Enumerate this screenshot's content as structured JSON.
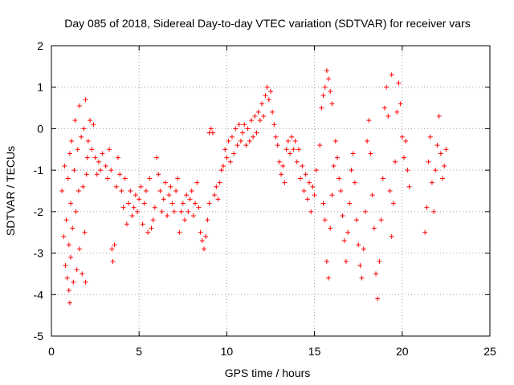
{
  "chart_data": {
    "type": "scatter",
    "title": "Day 085 of 2018, Sidereal Day-to-day VTEC variation (SDTVAR) for receiver vars",
    "xlabel": "GPS time / hours",
    "ylabel": "SDTVAR / TECUs",
    "xlim": [
      0,
      25
    ],
    "ylim": [
      -5,
      2
    ],
    "xticks": [
      0,
      5,
      10,
      15,
      20,
      25
    ],
    "xtick_labels": [
      "0",
      "5",
      "10",
      "15",
      "20",
      "25"
    ],
    "yticks": [
      -5,
      -4,
      -3,
      -2,
      -1,
      0,
      1,
      2
    ],
    "ytick_labels": [
      "-5",
      "-4",
      "-3",
      "-2",
      "-1",
      "0",
      "1",
      "2"
    ],
    "grid": true,
    "marker": "+",
    "color": "#ff0000",
    "series": [
      {
        "name": "SDTVAR",
        "points": [
          [
            0.6,
            -1.5
          ],
          [
            0.7,
            -2.6
          ],
          [
            0.75,
            -0.9
          ],
          [
            0.8,
            -3.3
          ],
          [
            0.85,
            -2.2
          ],
          [
            0.9,
            -3.6
          ],
          [
            0.95,
            -1.2
          ],
          [
            1.0,
            -3.9
          ],
          [
            1.0,
            -2.8
          ],
          [
            1.05,
            -4.2
          ],
          [
            1.05,
            -0.6
          ],
          [
            1.1,
            -3.1
          ],
          [
            1.1,
            -1.8
          ],
          [
            1.15,
            -0.3
          ],
          [
            1.2,
            -2.4
          ],
          [
            1.25,
            -3.7
          ],
          [
            1.3,
            -1.0
          ],
          [
            1.35,
            0.2
          ],
          [
            1.4,
            -2.0
          ],
          [
            1.45,
            -3.4
          ],
          [
            1.5,
            -0.5
          ],
          [
            1.55,
            -1.5
          ],
          [
            1.6,
            -2.9
          ],
          [
            1.7,
            -0.2
          ],
          [
            1.75,
            -3.5
          ],
          [
            1.8,
            -1.4
          ],
          [
            1.85,
            0.0
          ],
          [
            1.9,
            -2.5
          ],
          [
            1.95,
            -3.7
          ],
          [
            2.0,
            -1.1
          ],
          [
            2.05,
            -0.7
          ],
          [
            2.1,
            -0.3
          ],
          [
            2.2,
            0.2
          ],
          [
            2.3,
            -0.5
          ],
          [
            2.4,
            0.1
          ],
          [
            2.5,
            -0.7
          ],
          [
            2.6,
            -1.1
          ],
          [
            2.7,
            -0.8
          ],
          [
            2.8,
            -1.0
          ],
          [
            2.9,
            -0.6
          ],
          [
            1.6,
            0.55
          ],
          [
            1.95,
            0.7
          ],
          [
            3.1,
            -0.9
          ],
          [
            3.2,
            -1.2
          ],
          [
            3.3,
            -0.5
          ],
          [
            3.4,
            -1.0
          ],
          [
            3.45,
            -2.9
          ],
          [
            3.5,
            -3.2
          ],
          [
            3.6,
            -2.8
          ],
          [
            3.7,
            -1.4
          ],
          [
            3.8,
            -0.7
          ],
          [
            3.9,
            -1.1
          ],
          [
            4.0,
            -1.5
          ],
          [
            4.1,
            -1.9
          ],
          [
            4.2,
            -1.2
          ],
          [
            4.3,
            -2.3
          ],
          [
            4.4,
            -1.8
          ],
          [
            4.5,
            -1.5
          ],
          [
            4.6,
            -2.1
          ],
          [
            4.7,
            -1.9
          ],
          [
            4.8,
            -1.6
          ],
          [
            4.9,
            -2.0
          ],
          [
            5.0,
            -1.7
          ],
          [
            5.1,
            -1.4
          ],
          [
            5.2,
            -2.3
          ],
          [
            5.3,
            -1.8
          ],
          [
            5.4,
            -1.5
          ],
          [
            5.5,
            -2.5
          ],
          [
            5.6,
            -1.2
          ],
          [
            5.7,
            -2.4
          ],
          [
            5.8,
            -2.2
          ],
          [
            5.9,
            -1.9
          ],
          [
            6.0,
            -0.7
          ],
          [
            6.1,
            -1.1
          ],
          [
            6.2,
            -1.5
          ],
          [
            6.3,
            -2.0
          ],
          [
            6.4,
            -1.7
          ],
          [
            6.5,
            -1.3
          ],
          [
            6.6,
            -2.1
          ],
          [
            6.7,
            -1.6
          ],
          [
            6.8,
            -1.4
          ],
          [
            6.9,
            -1.8
          ],
          [
            7.0,
            -2.0
          ],
          [
            7.1,
            -1.5
          ],
          [
            7.2,
            -1.2
          ],
          [
            7.3,
            -2.5
          ],
          [
            7.4,
            -2.0
          ],
          [
            7.5,
            -1.8
          ],
          [
            7.6,
            -2.2
          ],
          [
            7.7,
            -1.6
          ],
          [
            7.8,
            -2.0
          ],
          [
            7.9,
            -1.7
          ],
          [
            8.0,
            -1.5
          ],
          [
            8.1,
            -2.1
          ],
          [
            8.2,
            -1.8
          ],
          [
            8.3,
            -1.3
          ],
          [
            8.4,
            -1.9
          ],
          [
            8.5,
            -2.5
          ],
          [
            8.6,
            -2.7
          ],
          [
            8.7,
            -2.9
          ],
          [
            8.8,
            -2.6
          ],
          [
            8.9,
            -2.2
          ],
          [
            9.0,
            -1.8
          ],
          [
            9.0,
            -0.1
          ],
          [
            9.1,
            0.0
          ],
          [
            9.2,
            -0.1
          ],
          [
            9.3,
            -1.6
          ],
          [
            9.4,
            -1.4
          ],
          [
            9.5,
            -1.7
          ],
          [
            9.6,
            -1.3
          ],
          [
            9.7,
            -1.0
          ],
          [
            9.8,
            -0.9
          ],
          [
            9.9,
            -0.5
          ],
          [
            10.0,
            -0.7
          ],
          [
            10.1,
            -0.3
          ],
          [
            10.2,
            -0.8
          ],
          [
            10.3,
            -0.2
          ],
          [
            10.4,
            -0.6
          ],
          [
            10.5,
            0.0
          ],
          [
            10.6,
            -0.4
          ],
          [
            10.7,
            0.1
          ],
          [
            10.8,
            -0.3
          ],
          [
            10.9,
            -0.1
          ],
          [
            11.0,
            0.1
          ],
          [
            11.1,
            -0.4
          ],
          [
            11.2,
            0.0
          ],
          [
            11.3,
            -0.3
          ],
          [
            11.4,
            0.2
          ],
          [
            11.5,
            -0.2
          ],
          [
            11.6,
            0.3
          ],
          [
            11.7,
            -0.1
          ],
          [
            11.8,
            0.4
          ],
          [
            11.9,
            0.2
          ],
          [
            12.0,
            0.6
          ],
          [
            12.1,
            0.3
          ],
          [
            12.2,
            0.8
          ],
          [
            12.3,
            1.0
          ],
          [
            12.4,
            0.7
          ],
          [
            12.5,
            0.9
          ],
          [
            12.6,
            0.4
          ],
          [
            12.7,
            0.1
          ],
          [
            12.8,
            -0.2
          ],
          [
            12.9,
            -0.4
          ],
          [
            13.0,
            -0.8
          ],
          [
            13.1,
            -1.1
          ],
          [
            13.2,
            -0.9
          ],
          [
            13.3,
            -1.3
          ],
          [
            13.4,
            -0.5
          ],
          [
            13.5,
            -0.3
          ],
          [
            13.6,
            -0.6
          ],
          [
            13.7,
            -0.2
          ],
          [
            13.8,
            -0.5
          ],
          [
            13.9,
            -0.3
          ],
          [
            14.0,
            -0.8
          ],
          [
            14.1,
            -0.5
          ],
          [
            14.2,
            -1.2
          ],
          [
            14.3,
            -0.9
          ],
          [
            14.4,
            -1.5
          ],
          [
            14.5,
            -1.1
          ],
          [
            14.6,
            -1.7
          ],
          [
            14.7,
            -1.3
          ],
          [
            14.8,
            -2.0
          ],
          [
            14.9,
            -1.4
          ],
          [
            15.0,
            -1.6
          ],
          [
            15.1,
            -1.0
          ],
          [
            15.3,
            -0.4
          ],
          [
            15.4,
            0.5
          ],
          [
            15.5,
            0.8
          ],
          [
            15.6,
            1.0
          ],
          [
            15.7,
            1.4
          ],
          [
            15.8,
            1.2
          ],
          [
            15.9,
            0.9
          ],
          [
            16.0,
            0.6
          ],
          [
            15.5,
            -1.8
          ],
          [
            15.6,
            -2.2
          ],
          [
            15.7,
            -3.2
          ],
          [
            15.8,
            -3.6
          ],
          [
            15.9,
            -2.4
          ],
          [
            16.0,
            -1.6
          ],
          [
            16.1,
            -0.9
          ],
          [
            16.2,
            -0.3
          ],
          [
            16.3,
            -0.7
          ],
          [
            16.4,
            -1.2
          ],
          [
            16.5,
            -1.5
          ],
          [
            16.6,
            -2.1
          ],
          [
            16.7,
            -2.7
          ],
          [
            16.8,
            -3.2
          ],
          [
            16.9,
            -2.5
          ],
          [
            17.0,
            -1.8
          ],
          [
            17.1,
            -1.0
          ],
          [
            17.2,
            -0.6
          ],
          [
            17.3,
            -1.3
          ],
          [
            17.4,
            -2.2
          ],
          [
            17.5,
            -2.8
          ],
          [
            17.6,
            -3.3
          ],
          [
            17.7,
            -3.6
          ],
          [
            17.8,
            -2.9
          ],
          [
            17.9,
            -2.0
          ],
          [
            18.0,
            -0.3
          ],
          [
            18.1,
            0.2
          ],
          [
            18.2,
            -0.6
          ],
          [
            18.3,
            -1.6
          ],
          [
            18.4,
            -2.4
          ],
          [
            18.5,
            -3.5
          ],
          [
            18.6,
            -4.1
          ],
          [
            18.7,
            -3.2
          ],
          [
            18.8,
            -2.2
          ],
          [
            18.9,
            -1.2
          ],
          [
            19.0,
            0.5
          ],
          [
            19.1,
            1.0
          ],
          [
            19.2,
            0.3
          ],
          [
            19.3,
            -1.5
          ],
          [
            19.4,
            -2.6
          ],
          [
            19.5,
            -1.8
          ],
          [
            19.6,
            -0.8
          ],
          [
            19.7,
            0.4
          ],
          [
            19.8,
            1.1
          ],
          [
            19.9,
            0.6
          ],
          [
            20.0,
            -0.2
          ],
          [
            20.1,
            -0.7
          ],
          [
            20.2,
            -0.3
          ],
          [
            19.4,
            1.3
          ],
          [
            20.3,
            -1.0
          ],
          [
            20.4,
            -1.4
          ],
          [
            21.3,
            -2.5
          ],
          [
            21.4,
            -1.9
          ],
          [
            21.5,
            -0.8
          ],
          [
            21.6,
            -0.2
          ],
          [
            21.7,
            -1.3
          ],
          [
            21.8,
            -2.0
          ],
          [
            21.9,
            -1.0
          ],
          [
            22.0,
            -0.4
          ],
          [
            22.1,
            0.3
          ],
          [
            22.2,
            -0.6
          ],
          [
            22.3,
            -1.2
          ],
          [
            22.4,
            -0.9
          ],
          [
            22.5,
            -0.5
          ]
        ]
      }
    ]
  }
}
